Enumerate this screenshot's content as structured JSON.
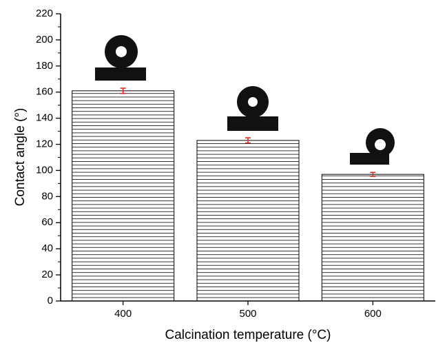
{
  "chart_data": {
    "type": "bar",
    "x_label": "Calcination temperature (°C)",
    "y_label": "Contact angle (°)",
    "categories": [
      "400",
      "500",
      "600"
    ],
    "series": [
      {
        "values": [
          161,
          123,
          97
        ],
        "errors": [
          2,
          2,
          1.5
        ],
        "color": "#000000",
        "error_color": "#e0201b"
      }
    ],
    "ylim": [
      0,
      220
    ],
    "yticks": [
      0,
      20,
      40,
      60,
      80,
      100,
      120,
      140,
      160,
      180,
      200,
      220
    ]
  }
}
